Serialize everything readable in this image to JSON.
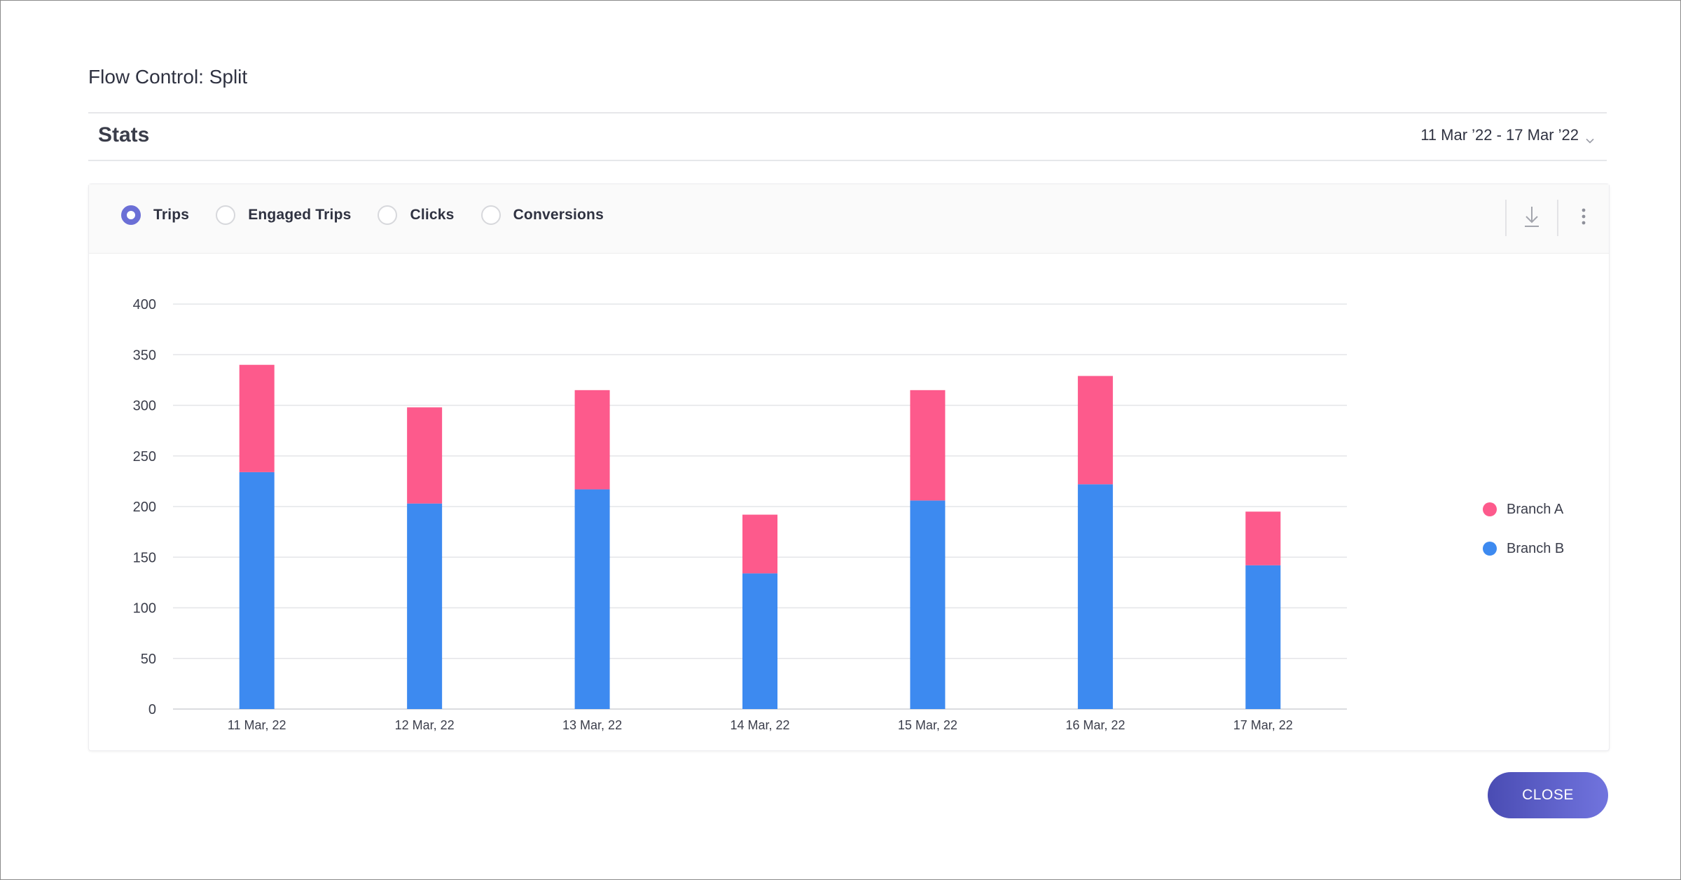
{
  "modal": {
    "title": "Flow Control: Split"
  },
  "stats": {
    "title": "Stats",
    "date_range": "11 Mar ’22 - 17 Mar ’22"
  },
  "metric_tabs": [
    {
      "label": "Trips",
      "selected": true
    },
    {
      "label": "Engaged Trips",
      "selected": false
    },
    {
      "label": "Clicks",
      "selected": false
    },
    {
      "label": "Conversions",
      "selected": false
    }
  ],
  "icons": {
    "download": "download-icon",
    "more": "more-vertical-icon",
    "date_dropdown": "chevron-down-icon"
  },
  "colors": {
    "branch_a": "#fd5a8c",
    "branch_b": "#3d8af0",
    "accent": "#6b6fd6"
  },
  "chart_data": {
    "type": "bar",
    "stacked": true,
    "categories": [
      "11 Mar, 22",
      "12 Mar, 22",
      "13 Mar, 22",
      "14 Mar, 22",
      "15 Mar, 22",
      "16 Mar, 22",
      "17 Mar, 22"
    ],
    "series": [
      {
        "name": "Branch B",
        "color": "#3d8af0",
        "values": [
          234,
          203,
          217,
          134,
          206,
          222,
          142
        ]
      },
      {
        "name": "Branch A",
        "color": "#fd5a8c",
        "values": [
          106,
          95,
          98,
          58,
          109,
          107,
          53
        ]
      }
    ],
    "ylim": [
      0,
      400
    ],
    "yticks": [
      0,
      50,
      100,
      150,
      200,
      250,
      300,
      350,
      400
    ],
    "grid": true,
    "legend_position": "right"
  },
  "footer": {
    "close_label": "CLOSE"
  }
}
